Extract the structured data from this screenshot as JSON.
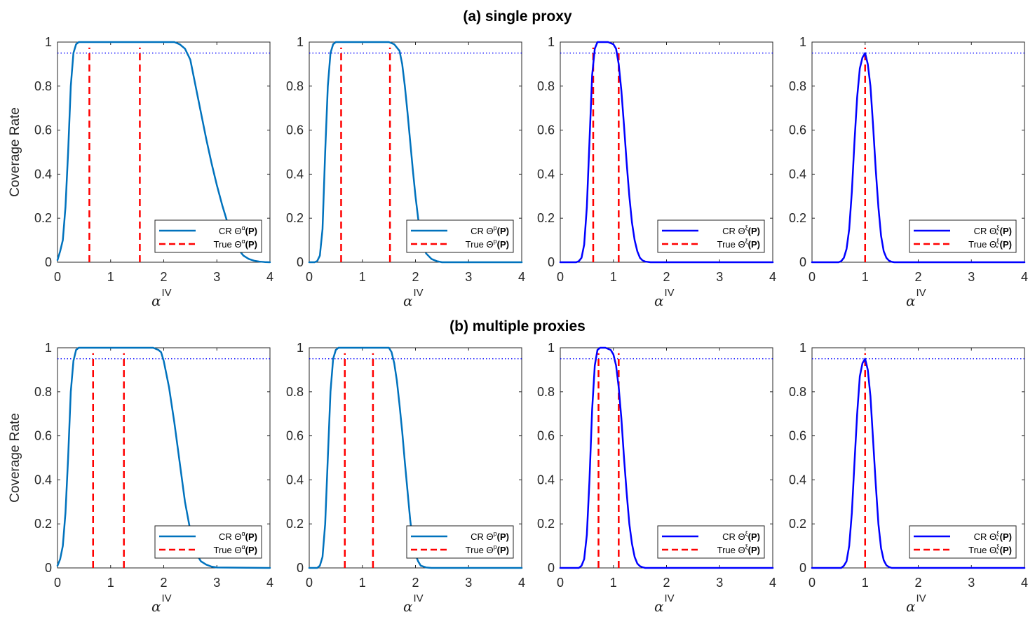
{
  "figure": {
    "panel_titles": [
      "(a) single proxy",
      "(b) multiple proxies"
    ],
    "xlabel_symbol": "α",
    "xlabel_superscript": "IV",
    "ylabel": "Coverage Rate",
    "reference_line": 0.95
  },
  "colors": {
    "light_blue": "#0072BD",
    "blue": "#0000FF",
    "red": "#FF0000",
    "reference": "#0000FF",
    "axis": "#262626"
  },
  "chart_data": [
    {
      "type": "line",
      "row": 0,
      "col": 0,
      "xlim": [
        0,
        4
      ],
      "ylim": [
        0,
        1
      ],
      "xticks": [
        0,
        1,
        2,
        3,
        4
      ],
      "yticks": [
        0,
        0.2,
        0.4,
        0.6,
        0.8,
        1
      ],
      "ylabel": "Coverage Rate",
      "xlabel": "αIV",
      "series": [
        {
          "name": "CR Θα(P)",
          "color": "light_blue",
          "style": "solid",
          "x": [
            0,
            0.05,
            0.1,
            0.15,
            0.2,
            0.25,
            0.3,
            0.35,
            0.4,
            0.5,
            1.0,
            1.5,
            2.0,
            2.2,
            2.3,
            2.4,
            2.5,
            2.6,
            2.7,
            2.8,
            2.9,
            3.0,
            3.1,
            3.2,
            3.3,
            3.4,
            3.5,
            3.6,
            3.7,
            3.8,
            3.9,
            4.0
          ],
          "y": [
            0.01,
            0.05,
            0.1,
            0.25,
            0.5,
            0.8,
            0.95,
            0.99,
            1.0,
            1.0,
            1.0,
            1.0,
            1.0,
            1.0,
            0.99,
            0.97,
            0.92,
            0.8,
            0.68,
            0.56,
            0.45,
            0.35,
            0.26,
            0.18,
            0.11,
            0.06,
            0.03,
            0.015,
            0.007,
            0.003,
            0.001,
            0.0
          ]
        }
      ],
      "true_values": [
        0.6,
        1.55
      ],
      "legend": {
        "entries": [
          "CR Θα(P)",
          "True Θα(P)"
        ],
        "location": "bottom-right"
      }
    },
    {
      "type": "line",
      "row": 0,
      "col": 1,
      "xlim": [
        0,
        4
      ],
      "ylim": [
        0,
        1
      ],
      "xticks": [
        0,
        1,
        2,
        3,
        4
      ],
      "yticks": [
        0,
        0.2,
        0.4,
        0.6,
        0.8,
        1
      ],
      "xlabel": "αIV",
      "series": [
        {
          "name": "CR Θp(P)",
          "color": "light_blue",
          "style": "solid",
          "x": [
            0,
            0.1,
            0.15,
            0.2,
            0.25,
            0.3,
            0.35,
            0.4,
            0.45,
            0.5,
            1.0,
            1.5,
            1.6,
            1.7,
            1.75,
            1.8,
            1.85,
            1.9,
            1.95,
            2.0,
            2.05,
            2.1,
            2.15,
            2.2,
            2.3,
            2.4,
            2.5,
            3.0,
            4.0
          ],
          "y": [
            0,
            0,
            0.005,
            0.03,
            0.15,
            0.5,
            0.8,
            0.95,
            0.99,
            1.0,
            1.0,
            1.0,
            0.99,
            0.96,
            0.9,
            0.8,
            0.68,
            0.55,
            0.42,
            0.3,
            0.2,
            0.12,
            0.07,
            0.04,
            0.015,
            0.005,
            0.0,
            0.0,
            0.0
          ]
        }
      ],
      "true_values": [
        0.6,
        1.52
      ],
      "legend": {
        "entries": [
          "CR Θp(P)",
          "True Θp(P)"
        ],
        "location": "bottom-right"
      }
    },
    {
      "type": "line",
      "row": 0,
      "col": 2,
      "xlim": [
        0,
        4
      ],
      "ylim": [
        0,
        1
      ],
      "xticks": [
        0,
        1,
        2,
        3,
        4
      ],
      "yticks": [
        0,
        0.2,
        0.4,
        0.6,
        0.8,
        1
      ],
      "xlabel": "αIV",
      "series": [
        {
          "name": "CR Θξ(P)",
          "color": "blue",
          "style": "solid",
          "x": [
            0,
            0.3,
            0.35,
            0.4,
            0.45,
            0.5,
            0.55,
            0.6,
            0.65,
            0.7,
            0.8,
            0.9,
            1.0,
            1.05,
            1.1,
            1.15,
            1.2,
            1.25,
            1.3,
            1.35,
            1.4,
            1.45,
            1.5,
            1.55,
            1.6,
            1.7,
            2.0,
            4.0
          ],
          "y": [
            0,
            0,
            0.005,
            0.02,
            0.08,
            0.25,
            0.55,
            0.85,
            0.97,
            1.0,
            1.0,
            1.0,
            0.99,
            0.97,
            0.9,
            0.78,
            0.62,
            0.45,
            0.3,
            0.18,
            0.1,
            0.05,
            0.02,
            0.008,
            0.003,
            0.0,
            0.0,
            0.0
          ]
        }
      ],
      "true_values": [
        0.62,
        1.1
      ],
      "legend": {
        "entries": [
          "CR Θξ(P)",
          "True Θξ(P)"
        ],
        "location": "bottom-right"
      }
    },
    {
      "type": "line",
      "row": 0,
      "col": 3,
      "xlim": [
        0,
        4
      ],
      "ylim": [
        0,
        1
      ],
      "xticks": [
        0,
        1,
        2,
        3,
        4
      ],
      "yticks": [
        0,
        0.2,
        0.4,
        0.6,
        0.8,
        1
      ],
      "xlabel": "αIV",
      "series": [
        {
          "name": "CR Θ*ξ(P)",
          "color": "blue",
          "style": "solid",
          "x": [
            0,
            0.5,
            0.55,
            0.6,
            0.65,
            0.7,
            0.75,
            0.8,
            0.85,
            0.9,
            0.95,
            1.0,
            1.05,
            1.1,
            1.15,
            1.2,
            1.25,
            1.3,
            1.35,
            1.4,
            1.45,
            1.5,
            1.55,
            1.6,
            2.0,
            4.0
          ],
          "y": [
            0,
            0,
            0.005,
            0.02,
            0.06,
            0.15,
            0.32,
            0.55,
            0.75,
            0.88,
            0.93,
            0.95,
            0.9,
            0.8,
            0.62,
            0.42,
            0.25,
            0.12,
            0.05,
            0.02,
            0.007,
            0.002,
            0.0,
            0.0,
            0.0,
            0.0
          ]
        }
      ],
      "true_values": [
        1.0
      ],
      "legend": {
        "entries": [
          "CR Θ*ξ(P)",
          "True Θ*ξ(P)"
        ],
        "location": "bottom-right"
      }
    },
    {
      "type": "line",
      "row": 1,
      "col": 0,
      "xlim": [
        0,
        4
      ],
      "ylim": [
        0,
        1
      ],
      "xticks": [
        0,
        1,
        2,
        3,
        4
      ],
      "yticks": [
        0,
        0.2,
        0.4,
        0.6,
        0.8,
        1
      ],
      "ylabel": "Coverage Rate",
      "xlabel": "αIV",
      "series": [
        {
          "name": "CR Θα(P)",
          "color": "light_blue",
          "style": "solid",
          "x": [
            0,
            0.05,
            0.1,
            0.15,
            0.2,
            0.25,
            0.3,
            0.35,
            0.4,
            0.45,
            0.5,
            1.0,
            1.5,
            1.8,
            1.9,
            1.95,
            2.0,
            2.05,
            2.1,
            2.15,
            2.2,
            2.3,
            2.4,
            2.5,
            2.6,
            2.65,
            2.7,
            2.8,
            2.9,
            3.0,
            4.0
          ],
          "y": [
            0.01,
            0.04,
            0.1,
            0.25,
            0.5,
            0.8,
            0.94,
            0.99,
            1.0,
            1.0,
            1.0,
            1.0,
            1.0,
            1.0,
            0.99,
            0.98,
            0.94,
            0.88,
            0.82,
            0.74,
            0.66,
            0.48,
            0.3,
            0.17,
            0.09,
            0.05,
            0.03,
            0.015,
            0.006,
            0.002,
            0.0
          ]
        }
      ],
      "true_values": [
        0.67,
        1.25
      ],
      "legend": {
        "entries": [
          "CR Θα(P)",
          "True Θα(P)"
        ],
        "location": "bottom-right"
      }
    },
    {
      "type": "line",
      "row": 1,
      "col": 1,
      "xlim": [
        0,
        4
      ],
      "ylim": [
        0,
        1
      ],
      "xticks": [
        0,
        1,
        2,
        3,
        4
      ],
      "yticks": [
        0,
        0.2,
        0.4,
        0.6,
        0.8,
        1
      ],
      "xlabel": "αIV",
      "series": [
        {
          "name": "CR Θp(P)",
          "color": "light_blue",
          "style": "solid",
          "x": [
            0,
            0.15,
            0.2,
            0.25,
            0.3,
            0.35,
            0.4,
            0.45,
            0.5,
            0.55,
            1.0,
            1.5,
            1.55,
            1.6,
            1.65,
            1.7,
            1.75,
            1.8,
            1.85,
            1.9,
            1.95,
            2.0,
            2.05,
            2.1,
            2.2,
            2.3,
            4.0
          ],
          "y": [
            0,
            0,
            0.01,
            0.05,
            0.2,
            0.5,
            0.8,
            0.95,
            0.99,
            1.0,
            1.0,
            1.0,
            0.98,
            0.93,
            0.85,
            0.74,
            0.62,
            0.48,
            0.35,
            0.22,
            0.12,
            0.06,
            0.03,
            0.01,
            0.002,
            0.0,
            0.0
          ]
        }
      ],
      "true_values": [
        0.67,
        1.2
      ],
      "legend": {
        "entries": [
          "CR Θp(P)",
          "True Θp(P)"
        ],
        "location": "bottom-right"
      }
    },
    {
      "type": "line",
      "row": 1,
      "col": 2,
      "xlim": [
        0,
        4
      ],
      "ylim": [
        0,
        1
      ],
      "xticks": [
        0,
        1,
        2,
        3,
        4
      ],
      "yticks": [
        0,
        0.2,
        0.4,
        0.6,
        0.8,
        1
      ],
      "xlabel": "αIV",
      "series": [
        {
          "name": "CR Θξ(P)",
          "color": "blue",
          "style": "solid",
          "x": [
            0,
            0.35,
            0.4,
            0.45,
            0.5,
            0.55,
            0.6,
            0.65,
            0.7,
            0.75,
            0.85,
            0.95,
            1.0,
            1.05,
            1.1,
            1.15,
            1.2,
            1.25,
            1.3,
            1.35,
            1.4,
            1.45,
            1.5,
            1.55,
            1.6,
            2.0,
            4.0
          ],
          "y": [
            0,
            0,
            0.01,
            0.04,
            0.15,
            0.4,
            0.72,
            0.92,
            0.99,
            1.0,
            1.0,
            0.99,
            0.97,
            0.92,
            0.82,
            0.68,
            0.5,
            0.34,
            0.2,
            0.11,
            0.05,
            0.02,
            0.008,
            0.003,
            0.0,
            0.0,
            0.0
          ]
        }
      ],
      "true_values": [
        0.72,
        1.1
      ],
      "legend": {
        "entries": [
          "CR Θξ(P)",
          "True Θξ(P)"
        ],
        "location": "bottom-right"
      }
    },
    {
      "type": "line",
      "row": 1,
      "col": 3,
      "xlim": [
        0,
        4
      ],
      "ylim": [
        0,
        1
      ],
      "xticks": [
        0,
        1,
        2,
        3,
        4
      ],
      "yticks": [
        0,
        0.2,
        0.4,
        0.6,
        0.8,
        1
      ],
      "xlabel": "αIV",
      "series": [
        {
          "name": "CR Θ*ξ(P)",
          "color": "blue",
          "style": "solid",
          "x": [
            0,
            0.55,
            0.6,
            0.65,
            0.7,
            0.75,
            0.8,
            0.85,
            0.9,
            0.95,
            1.0,
            1.05,
            1.1,
            1.15,
            1.2,
            1.25,
            1.3,
            1.35,
            1.4,
            1.45,
            1.5,
            2.0,
            4.0
          ],
          "y": [
            0,
            0,
            0.01,
            0.03,
            0.1,
            0.25,
            0.48,
            0.7,
            0.87,
            0.93,
            0.95,
            0.9,
            0.78,
            0.58,
            0.38,
            0.2,
            0.09,
            0.035,
            0.012,
            0.004,
            0.0,
            0.0,
            0.0
          ]
        }
      ],
      "true_values": [
        1.0
      ],
      "legend": {
        "entries": [
          "CR Θ*ξ(P)",
          "True Θ*ξ(P)"
        ],
        "location": "bottom-right"
      }
    }
  ]
}
